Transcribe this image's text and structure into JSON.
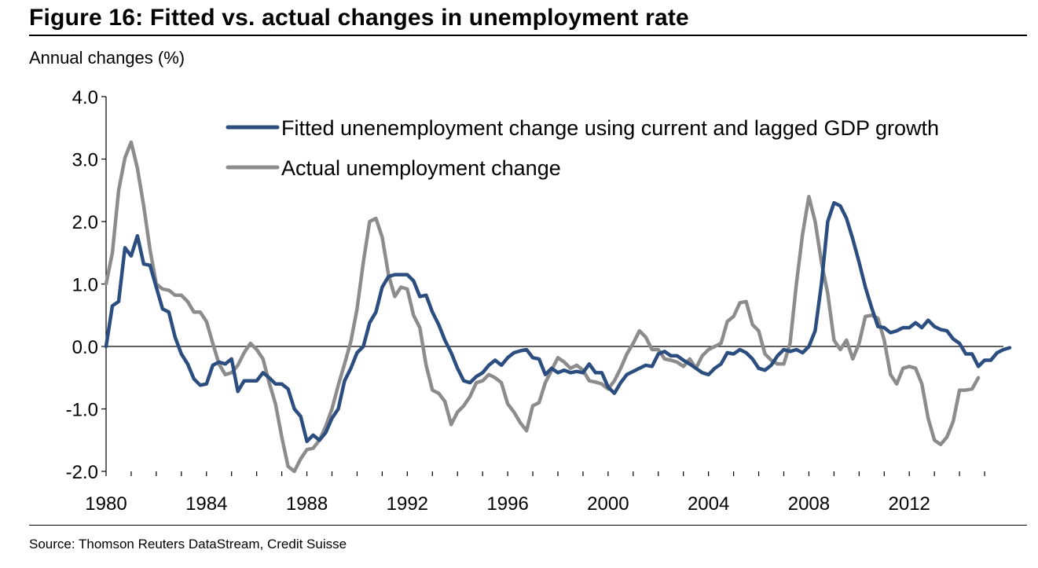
{
  "figure": {
    "title": "Figure 16: Fitted vs. actual changes in unemployment rate",
    "subtitle": "Annual changes (%)",
    "source": "Source: Thomson Reuters DataStream, Credit Suisse"
  },
  "colors": {
    "fitted": "#2b4d80",
    "actual": "#8c8c8c",
    "axis": "#000000"
  },
  "chart_data": {
    "type": "line",
    "ylabel": "Annual changes (%)",
    "xlim": [
      1980,
      2015.75
    ],
    "ylim": [
      -2.0,
      4.0
    ],
    "yticks": [
      4.0,
      3.0,
      2.0,
      1.0,
      0.0,
      -1.0,
      -2.0
    ],
    "ytick_labels": [
      "4.0",
      "3.0",
      "2.0",
      "1.0",
      "0.0",
      "-1.0",
      "-2.0"
    ],
    "xticks": [
      1980,
      1984,
      1988,
      1992,
      1996,
      2000,
      2004,
      2008,
      2012
    ],
    "xtick_labels": [
      "1980",
      "1984",
      "1988",
      "1992",
      "1996",
      "2000",
      "2004",
      "2008",
      "2012"
    ],
    "grid": false,
    "legend_position": "top",
    "series": [
      {
        "name": "Fitted unenemployment change using current and lagged GDP growth",
        "color": "#2b4d80",
        "points": [
          [
            1980,
            0.0
          ],
          [
            1980.25,
            0.65
          ],
          [
            1980.5,
            0.72
          ],
          [
            1980.75,
            1.58
          ],
          [
            1981,
            1.45
          ],
          [
            1981.25,
            1.77
          ],
          [
            1981.5,
            1.32
          ],
          [
            1981.75,
            1.3
          ],
          [
            1982,
            0.95
          ],
          [
            1982.25,
            0.6
          ],
          [
            1982.5,
            0.55
          ],
          [
            1982.75,
            0.15
          ],
          [
            1983,
            -0.12
          ],
          [
            1983.25,
            -0.28
          ],
          [
            1983.5,
            -0.52
          ],
          [
            1983.75,
            -0.62
          ],
          [
            1984,
            -0.6
          ],
          [
            1984.25,
            -0.3
          ],
          [
            1984.5,
            -0.25
          ],
          [
            1984.75,
            -0.28
          ],
          [
            1985,
            -0.2
          ],
          [
            1985.25,
            -0.72
          ],
          [
            1985.5,
            -0.55
          ],
          [
            1985.75,
            -0.55
          ],
          [
            1986,
            -0.55
          ],
          [
            1986.25,
            -0.42
          ],
          [
            1986.5,
            -0.5
          ],
          [
            1986.75,
            -0.6
          ],
          [
            1987,
            -0.6
          ],
          [
            1987.25,
            -0.68
          ],
          [
            1987.5,
            -1.0
          ],
          [
            1987.75,
            -1.12
          ],
          [
            1988,
            -1.52
          ],
          [
            1988.25,
            -1.42
          ],
          [
            1988.5,
            -1.5
          ],
          [
            1988.75,
            -1.38
          ],
          [
            1989,
            -1.15
          ],
          [
            1989.25,
            -1.0
          ],
          [
            1989.5,
            -0.55
          ],
          [
            1989.75,
            -0.35
          ],
          [
            1990,
            -0.1
          ],
          [
            1990.25,
            0.0
          ],
          [
            1990.5,
            0.38
          ],
          [
            1990.75,
            0.55
          ],
          [
            1991,
            0.95
          ],
          [
            1991.25,
            1.12
          ],
          [
            1991.5,
            1.15
          ],
          [
            1991.75,
            1.15
          ],
          [
            1992,
            1.15
          ],
          [
            1992.25,
            1.05
          ],
          [
            1992.5,
            0.8
          ],
          [
            1992.75,
            0.82
          ],
          [
            1993,
            0.55
          ],
          [
            1993.25,
            0.35
          ],
          [
            1993.5,
            0.1
          ],
          [
            1993.75,
            -0.1
          ],
          [
            1994,
            -0.35
          ],
          [
            1994.25,
            -0.55
          ],
          [
            1994.5,
            -0.58
          ],
          [
            1994.75,
            -0.48
          ],
          [
            1995,
            -0.42
          ],
          [
            1995.25,
            -0.3
          ],
          [
            1995.5,
            -0.22
          ],
          [
            1995.75,
            -0.3
          ],
          [
            1996,
            -0.18
          ],
          [
            1996.25,
            -0.1
          ],
          [
            1996.5,
            -0.07
          ],
          [
            1996.75,
            -0.05
          ],
          [
            1997,
            -0.18
          ],
          [
            1997.25,
            -0.2
          ],
          [
            1997.5,
            -0.45
          ],
          [
            1997.75,
            -0.35
          ],
          [
            1998,
            -0.42
          ],
          [
            1998.25,
            -0.38
          ],
          [
            1998.5,
            -0.42
          ],
          [
            1998.75,
            -0.4
          ],
          [
            1999,
            -0.42
          ],
          [
            1999.25,
            -0.28
          ],
          [
            1999.5,
            -0.42
          ],
          [
            1999.75,
            -0.42
          ],
          [
            2000,
            -0.65
          ],
          [
            2000.25,
            -0.75
          ],
          [
            2000.5,
            -0.58
          ],
          [
            2000.75,
            -0.45
          ],
          [
            2001,
            -0.4
          ],
          [
            2001.25,
            -0.35
          ],
          [
            2001.5,
            -0.3
          ],
          [
            2001.75,
            -0.32
          ],
          [
            2002,
            -0.12
          ],
          [
            2002.25,
            -0.08
          ],
          [
            2002.5,
            -0.15
          ],
          [
            2002.75,
            -0.15
          ],
          [
            2003,
            -0.22
          ],
          [
            2003.25,
            -0.28
          ],
          [
            2003.5,
            -0.35
          ],
          [
            2003.75,
            -0.42
          ],
          [
            2004,
            -0.45
          ],
          [
            2004.25,
            -0.35
          ],
          [
            2004.5,
            -0.28
          ],
          [
            2004.75,
            -0.1
          ],
          [
            2005,
            -0.12
          ],
          [
            2005.25,
            -0.05
          ],
          [
            2005.5,
            -0.1
          ],
          [
            2005.75,
            -0.2
          ],
          [
            2006,
            -0.35
          ],
          [
            2006.25,
            -0.38
          ],
          [
            2006.5,
            -0.3
          ],
          [
            2006.75,
            -0.15
          ],
          [
            2007,
            -0.05
          ],
          [
            2007.25,
            -0.08
          ],
          [
            2007.5,
            -0.05
          ],
          [
            2007.75,
            -0.1
          ],
          [
            2008,
            0.0
          ],
          [
            2008.25,
            0.25
          ],
          [
            2008.5,
            1.0
          ],
          [
            2008.75,
            2.0
          ],
          [
            2009,
            2.3
          ],
          [
            2009.25,
            2.25
          ],
          [
            2009.5,
            2.05
          ],
          [
            2009.75,
            1.72
          ],
          [
            2010,
            1.35
          ],
          [
            2010.25,
            0.95
          ],
          [
            2010.5,
            0.62
          ],
          [
            2010.75,
            0.32
          ],
          [
            2011,
            0.3
          ],
          [
            2011.25,
            0.22
          ],
          [
            2011.5,
            0.25
          ],
          [
            2011.75,
            0.3
          ],
          [
            2012,
            0.3
          ],
          [
            2012.25,
            0.38
          ],
          [
            2012.5,
            0.3
          ],
          [
            2012.75,
            0.42
          ],
          [
            2013,
            0.32
          ],
          [
            2013.25,
            0.27
          ],
          [
            2013.5,
            0.25
          ],
          [
            2013.75,
            0.12
          ],
          [
            2014,
            0.05
          ],
          [
            2014.25,
            -0.12
          ],
          [
            2014.5,
            -0.12
          ],
          [
            2014.75,
            -0.32
          ],
          [
            2015,
            -0.22
          ],
          [
            2015.25,
            -0.22
          ],
          [
            2015.5,
            -0.1
          ],
          [
            2015.75,
            -0.05
          ],
          [
            2016,
            -0.02
          ]
        ]
      },
      {
        "name": "Actual unemployment change",
        "color": "#8c8c8c",
        "points": [
          [
            1980,
            1.0
          ],
          [
            1980.25,
            1.5
          ],
          [
            1980.5,
            2.5
          ],
          [
            1980.75,
            3.02
          ],
          [
            1981,
            3.27
          ],
          [
            1981.25,
            2.85
          ],
          [
            1981.5,
            2.25
          ],
          [
            1981.75,
            1.55
          ],
          [
            1982,
            1.0
          ],
          [
            1982.25,
            0.92
          ],
          [
            1982.5,
            0.9
          ],
          [
            1982.75,
            0.82
          ],
          [
            1983,
            0.82
          ],
          [
            1983.25,
            0.72
          ],
          [
            1983.5,
            0.55
          ],
          [
            1983.75,
            0.55
          ],
          [
            1984,
            0.4
          ],
          [
            1984.25,
            0.05
          ],
          [
            1984.5,
            -0.28
          ],
          [
            1984.75,
            -0.45
          ],
          [
            1985,
            -0.42
          ],
          [
            1985.25,
            -0.3
          ],
          [
            1985.5,
            -0.1
          ],
          [
            1985.75,
            0.05
          ],
          [
            1986,
            -0.05
          ],
          [
            1986.25,
            -0.2
          ],
          [
            1986.5,
            -0.58
          ],
          [
            1986.75,
            -0.92
          ],
          [
            1987,
            -1.45
          ],
          [
            1987.25,
            -1.92
          ],
          [
            1987.5,
            -2.0
          ],
          [
            1987.75,
            -1.8
          ],
          [
            1988,
            -1.65
          ],
          [
            1988.25,
            -1.63
          ],
          [
            1988.5,
            -1.5
          ],
          [
            1988.75,
            -1.28
          ],
          [
            1989,
            -1.0
          ],
          [
            1989.25,
            -0.62
          ],
          [
            1989.5,
            -0.28
          ],
          [
            1989.75,
            0.08
          ],
          [
            1990,
            0.6
          ],
          [
            1990.25,
            1.35
          ],
          [
            1990.5,
            2.0
          ],
          [
            1990.75,
            2.05
          ],
          [
            1991,
            1.75
          ],
          [
            1991.25,
            1.15
          ],
          [
            1991.5,
            0.8
          ],
          [
            1991.75,
            0.95
          ],
          [
            1992,
            0.92
          ],
          [
            1992.25,
            0.5
          ],
          [
            1992.5,
            0.3
          ],
          [
            1992.75,
            -0.3
          ],
          [
            1993,
            -0.7
          ],
          [
            1993.25,
            -0.75
          ],
          [
            1993.5,
            -0.88
          ],
          [
            1993.75,
            -1.25
          ],
          [
            1994,
            -1.05
          ],
          [
            1994.25,
            -0.95
          ],
          [
            1994.5,
            -0.8
          ],
          [
            1994.75,
            -0.58
          ],
          [
            1995,
            -0.55
          ],
          [
            1995.25,
            -0.45
          ],
          [
            1995.5,
            -0.5
          ],
          [
            1995.75,
            -0.58
          ],
          [
            1996,
            -0.92
          ],
          [
            1996.25,
            -1.05
          ],
          [
            1996.5,
            -1.22
          ],
          [
            1996.75,
            -1.35
          ],
          [
            1997,
            -0.95
          ],
          [
            1997.25,
            -0.9
          ],
          [
            1997.5,
            -0.58
          ],
          [
            1997.75,
            -0.38
          ],
          [
            1998,
            -0.18
          ],
          [
            1998.25,
            -0.25
          ],
          [
            1998.5,
            -0.35
          ],
          [
            1998.75,
            -0.3
          ],
          [
            1999,
            -0.38
          ],
          [
            1999.25,
            -0.55
          ],
          [
            1999.5,
            -0.57
          ],
          [
            1999.75,
            -0.6
          ],
          [
            2000,
            -0.68
          ],
          [
            2000.25,
            -0.55
          ],
          [
            2000.5,
            -0.35
          ],
          [
            2000.75,
            -0.12
          ],
          [
            2001,
            0.05
          ],
          [
            2001.25,
            0.25
          ],
          [
            2001.5,
            0.15
          ],
          [
            2001.75,
            -0.05
          ],
          [
            2002,
            -0.05
          ],
          [
            2002.25,
            -0.2
          ],
          [
            2002.5,
            -0.22
          ],
          [
            2002.75,
            -0.25
          ],
          [
            2003,
            -0.32
          ],
          [
            2003.25,
            -0.2
          ],
          [
            2003.5,
            -0.35
          ],
          [
            2003.75,
            -0.15
          ],
          [
            2004,
            -0.05
          ],
          [
            2004.25,
            0.0
          ],
          [
            2004.5,
            0.05
          ],
          [
            2004.75,
            0.4
          ],
          [
            2005,
            0.48
          ],
          [
            2005.25,
            0.7
          ],
          [
            2005.5,
            0.72
          ],
          [
            2005.75,
            0.35
          ],
          [
            2006,
            0.25
          ],
          [
            2006.25,
            -0.12
          ],
          [
            2006.5,
            -0.22
          ],
          [
            2006.75,
            -0.28
          ],
          [
            2007,
            -0.28
          ],
          [
            2007.25,
            0.05
          ],
          [
            2007.5,
            1.0
          ],
          [
            2007.75,
            1.8
          ],
          [
            2008,
            2.4
          ],
          [
            2008.25,
            2.0
          ],
          [
            2008.5,
            1.35
          ],
          [
            2008.75,
            0.85
          ],
          [
            2009,
            0.1
          ],
          [
            2009.25,
            -0.05
          ],
          [
            2009.5,
            0.1
          ],
          [
            2009.75,
            -0.2
          ],
          [
            2010,
            0.05
          ],
          [
            2010.25,
            0.48
          ],
          [
            2010.5,
            0.5
          ],
          [
            2010.75,
            0.45
          ],
          [
            2011,
            0.1
          ],
          [
            2011.25,
            -0.45
          ],
          [
            2011.5,
            -0.6
          ],
          [
            2011.75,
            -0.35
          ],
          [
            2012,
            -0.32
          ],
          [
            2012.25,
            -0.35
          ],
          [
            2012.5,
            -0.6
          ],
          [
            2012.75,
            -1.15
          ],
          [
            2013,
            -1.5
          ],
          [
            2013.25,
            -1.57
          ],
          [
            2013.5,
            -1.45
          ],
          [
            2013.75,
            -1.2
          ],
          [
            2014,
            -0.7
          ],
          [
            2014.25,
            -0.7
          ],
          [
            2014.5,
            -0.68
          ],
          [
            2014.75,
            -0.5
          ]
        ]
      }
    ]
  }
}
